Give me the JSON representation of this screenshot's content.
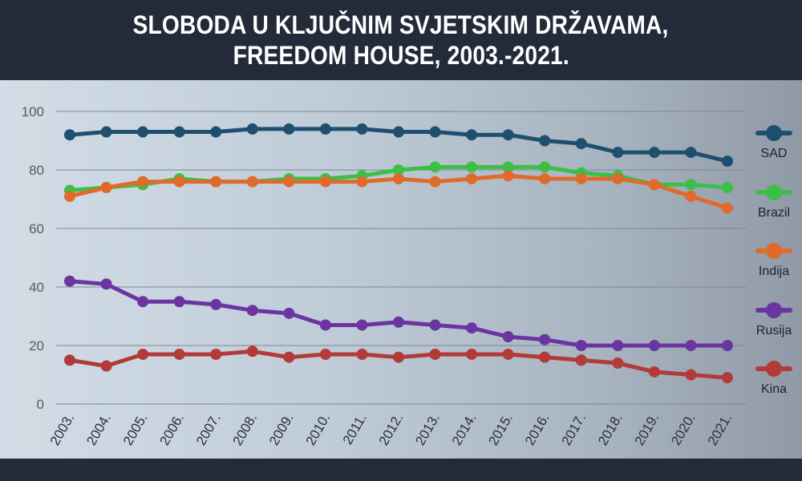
{
  "title_line1": "SLOBODA U KLJUČNIM SVJETSKIM DRŽAVAMA,",
  "title_line2": "FREEDOM HOUSE, 2003.-2021.",
  "chart_data": {
    "type": "line",
    "x": [
      "2003.",
      "2004.",
      "2005.",
      "2006.",
      "2007.",
      "2008.",
      "2009.",
      "2010.",
      "2011.",
      "2012.",
      "2013.",
      "2014.",
      "2015.",
      "2016.",
      "2017.",
      "2018.",
      "2019.",
      "2020.",
      "2021."
    ],
    "ylim": [
      0,
      100
    ],
    "yticks": [
      0,
      20,
      40,
      60,
      80,
      100
    ],
    "grid": true,
    "legend": "right",
    "series": [
      {
        "name": "SAD",
        "color": "#1f4f6e",
        "values": [
          92,
          93,
          93,
          93,
          93,
          94,
          94,
          94,
          94,
          93,
          93,
          92,
          92,
          90,
          89,
          86,
          86,
          86,
          83
        ]
      },
      {
        "name": "Brazil",
        "color": "#3dbf47",
        "values": [
          73,
          74,
          75,
          77,
          76,
          76,
          77,
          77,
          78,
          80,
          81,
          81,
          81,
          81,
          79,
          78,
          75,
          75,
          74
        ]
      },
      {
        "name": "Indija",
        "color": "#e06a2c",
        "values": [
          71,
          74,
          76,
          76,
          76,
          76,
          76,
          76,
          76,
          77,
          76,
          77,
          78,
          77,
          77,
          77,
          75,
          71,
          67
        ]
      },
      {
        "name": "Rusija",
        "color": "#6a35a0",
        "values": [
          42,
          41,
          35,
          35,
          34,
          32,
          31,
          27,
          27,
          28,
          27,
          26,
          23,
          22,
          20,
          20,
          20,
          20,
          20
        ]
      },
      {
        "name": "Kina",
        "color": "#b23a3a",
        "values": [
          15,
          13,
          17,
          17,
          17,
          18,
          16,
          17,
          17,
          16,
          17,
          17,
          17,
          16,
          15,
          14,
          11,
          10,
          9
        ]
      }
    ]
  }
}
